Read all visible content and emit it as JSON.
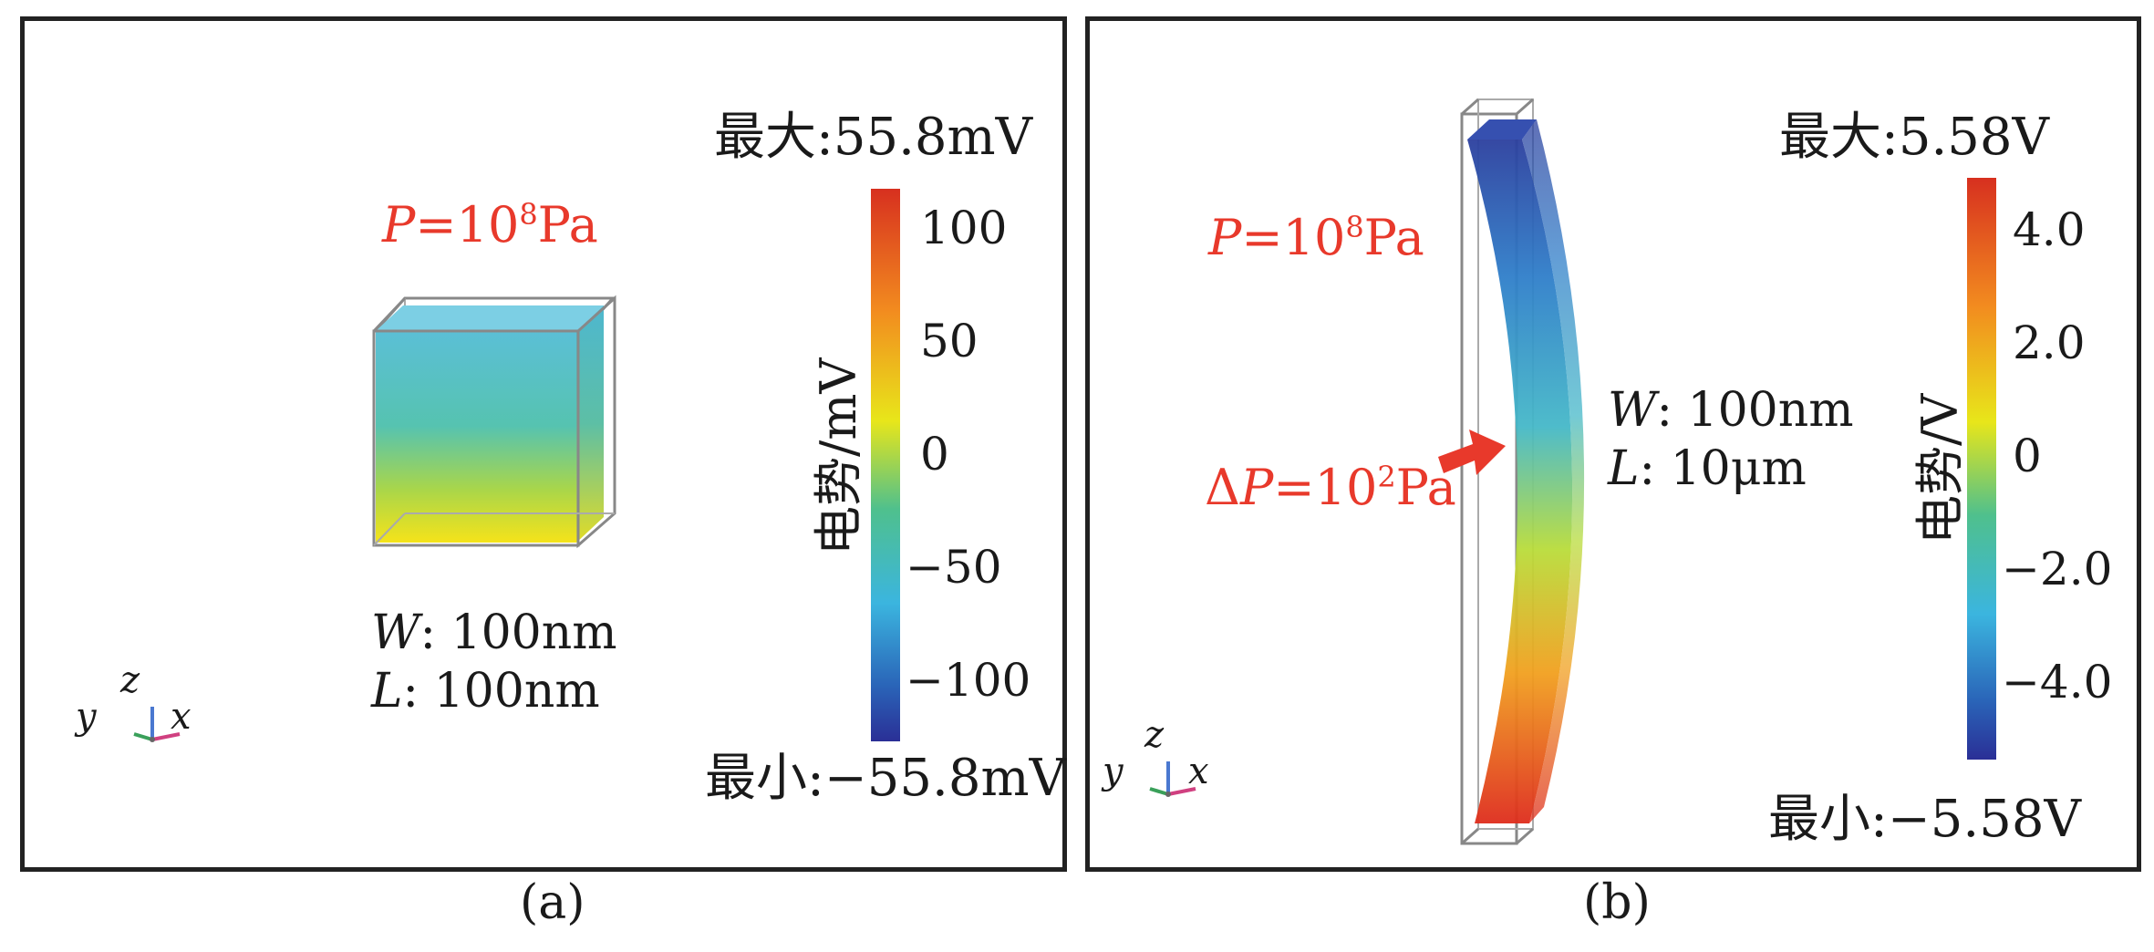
{
  "panel_a": {
    "caption": "(a)",
    "max_label": "最大:55.8mV",
    "min_label": "最小:−55.8mV",
    "pressure_symbol": "P",
    "pressure_rest": "=10",
    "pressure_exp": "8",
    "pressure_unit": "Pa",
    "dims": {
      "w_sym": "W",
      "w_val": ": 100nm",
      "l_sym": "L",
      "l_val": ": 100nm"
    },
    "colorbar": {
      "title": "电势/mV",
      "ticks": [
        "100",
        "50",
        "0",
        "−50",
        "−100"
      ]
    },
    "axes": {
      "y": "y",
      "z": "z",
      "x": "x"
    }
  },
  "panel_b": {
    "caption": "(b)",
    "max_label": "最大:5.58V",
    "min_label": "最小:−5.58V",
    "pressure_symbol": "P",
    "pressure_rest": "=10",
    "pressure_exp": "8",
    "pressure_unit": "Pa",
    "delta_prefix": "Δ",
    "delta_symbol": "P",
    "delta_rest": "=10",
    "delta_exp": "2",
    "delta_unit": "Pa",
    "dims": {
      "w_sym": "W",
      "w_val": ": 100nm",
      "l_sym": "L",
      "l_val": ": 10μm"
    },
    "colorbar": {
      "title": "电势/V",
      "ticks": [
        "4.0",
        "2.0",
        "0",
        "−2.0",
        "−4.0"
      ]
    },
    "axes": {
      "y": "y",
      "z": "z",
      "x": "x"
    }
  },
  "colors": {
    "pressure_text": "#e8392b",
    "frame": "#222222"
  }
}
